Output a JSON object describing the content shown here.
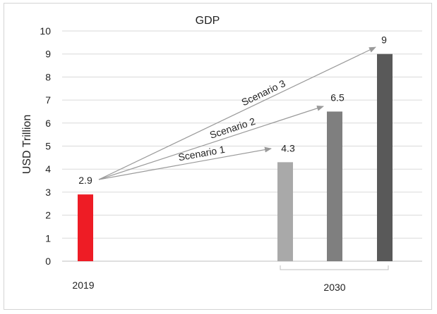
{
  "chart_data": {
    "type": "bar",
    "title": "GDP",
    "ylabel": "USD Trillion",
    "xlabel": "",
    "ylim": [
      0,
      10
    ],
    "yticks": [
      0,
      1,
      2,
      3,
      4,
      5,
      6,
      7,
      8,
      9,
      10
    ],
    "grid": true,
    "bars": [
      {
        "group": "2019",
        "value": 2.9,
        "label": "2.9",
        "color": "#ee1c25"
      },
      {
        "group": "2030",
        "value": 4.3,
        "label": "4.3",
        "color": "#a9a9a9"
      },
      {
        "group": "2030",
        "value": 6.5,
        "label": "6.5",
        "color": "#7f7f7f"
      },
      {
        "group": "2030",
        "value": 9,
        "label": "9",
        "color": "#595959"
      }
    ],
    "groups": [
      "2019",
      "2030"
    ],
    "annotations": [
      {
        "text": "Scenario 1",
        "from": "2.9",
        "to": "4.3"
      },
      {
        "text": "Scenario 2",
        "from": "2.9",
        "to": "6.5"
      },
      {
        "text": "Scenario 3",
        "from": "2.9",
        "to": "9"
      }
    ]
  }
}
